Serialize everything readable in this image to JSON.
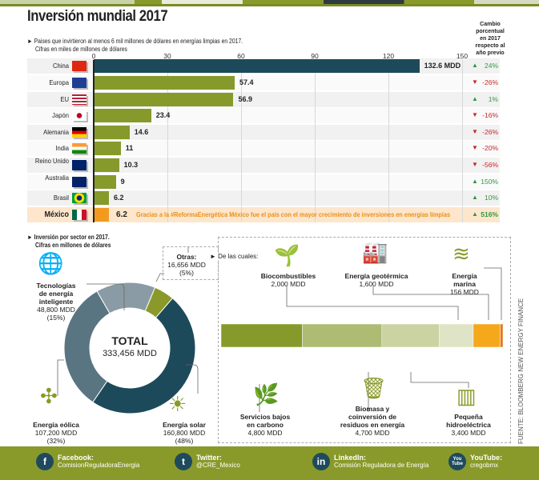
{
  "title": "Inversión mundial 2017",
  "subtitle_line1": "► Paises que invirtieron al menos 6 mil millones de dólares en energías limpias en 2017.",
  "subtitle_line2": "Cifras en miles de millones de dólares",
  "change_header": "Cambio porcentual en 2017 respecto al año previo",
  "colors": {
    "china": "#1d4a5a",
    "bar": "#86992b",
    "mexico": "#f39a1e",
    "up": "#2e9a3e",
    "down": "#c8252c",
    "mexico_text": "#e8901c"
  },
  "chart_data": [
    {
      "type": "bar",
      "orientation": "horizontal",
      "xlim": [
        0,
        150
      ],
      "xticks": [
        "0",
        "30",
        "60",
        "90",
        "120",
        "150"
      ],
      "categories": [
        "China",
        "Europa",
        "EU",
        "Japón",
        "Alemania",
        "India",
        "Reino Unido",
        "Australia",
        "Brasil",
        "México"
      ],
      "values": [
        132.6,
        57.4,
        56.9,
        23.4,
        14.6,
        11,
        10.3,
        9,
        6.2,
        6.2
      ],
      "value_labels": [
        "132.6 MDD",
        "57.4",
        "56.9",
        "23.4",
        "14.6",
        "11",
        "10.3",
        "9",
        "6.2",
        "6.2"
      ],
      "change": [
        "24%",
        "-26%",
        "1%",
        "-16%",
        "-26%",
        "-20%",
        "-56%",
        "150%",
        "10%",
        "516%"
      ],
      "change_dir": [
        "up",
        "down",
        "up",
        "down",
        "down",
        "down",
        "down",
        "up",
        "up",
        "up"
      ],
      "flags": [
        "flag-china",
        "flag-eu",
        "flag-usa",
        "flag-japan",
        "flag-germany",
        "flag-india",
        "flag-uk",
        "flag-australia",
        "flag-brazil",
        "flag-mexico"
      ],
      "grid": true
    },
    {
      "type": "pie",
      "donut": true,
      "subtitle_line1": "► Inversión por sector en 2017.",
      "subtitle_line2": "Cifras en millones de dólares",
      "center_title": "TOTAL",
      "center_value": "333,456 MDD",
      "slices": [
        {
          "name": "Tecnologías de energía inteligente",
          "value": 48800,
          "label": "48,800 MDD",
          "pct": "(15%)",
          "color": "#8a9ba5"
        },
        {
          "name": "Otras:",
          "value": 16656,
          "label": "16,656 MDD",
          "pct": "(5%)",
          "color": "#8a9a2a"
        },
        {
          "name": "Energía solar",
          "value": 160800,
          "label": "160,800 MDD",
          "pct": "(48%)",
          "color": "#1d4a5a"
        },
        {
          "name": "Energía eólica",
          "value": 107200,
          "label": "107,200 MDD",
          "pct": "(32%)",
          "color": "#5a7582"
        }
      ]
    },
    {
      "type": "bar",
      "stacked": true,
      "intro": "► De las cuales:",
      "segments": [
        {
          "name": "Servicios bajos en carbono",
          "value": 4800,
          "label": "4,800 MDD",
          "color": "#86992b"
        },
        {
          "name": "Biomasa y coinversión de residuos en energía",
          "value": 4700,
          "label": "4,700 MDD",
          "color": "#aebb72"
        },
        {
          "name": "Pequeña hidroeléctrica",
          "value": 3400,
          "label": "3,400 MDD",
          "color": "#cbd3a2"
        },
        {
          "name": "Biocombustibles",
          "value": 2000,
          "label": "2,000 MDD",
          "color": "#dfe4c6"
        },
        {
          "name": "Energía geotérmica",
          "value": 1600,
          "label": "1,600 MDD",
          "color": "#f5a81c"
        },
        {
          "name": "Energía marina",
          "value": 156,
          "label": "156 MDD",
          "color": "#e0781c"
        }
      ]
    }
  ],
  "mexico_note": "Gracias a la #ReformaEnergética México fue el país con el mayor crecimiento de inversiones en energías limpias",
  "source": "FUENTE: BLOOMBERG NEW ENERGY FINANCE",
  "footer": [
    {
      "label": "Facebook:",
      "handle": "ComisionReguladoraEnergia",
      "icon": "f"
    },
    {
      "label": "Twitter:",
      "handle": "@CRE_Mexico",
      "icon": "t"
    },
    {
      "label": "LinkedIn:",
      "handle": "Comisión Reguladora de Energía",
      "icon": "in"
    },
    {
      "label": "YouTube:",
      "handle": "cregobmx",
      "icon": "You Tube"
    }
  ]
}
